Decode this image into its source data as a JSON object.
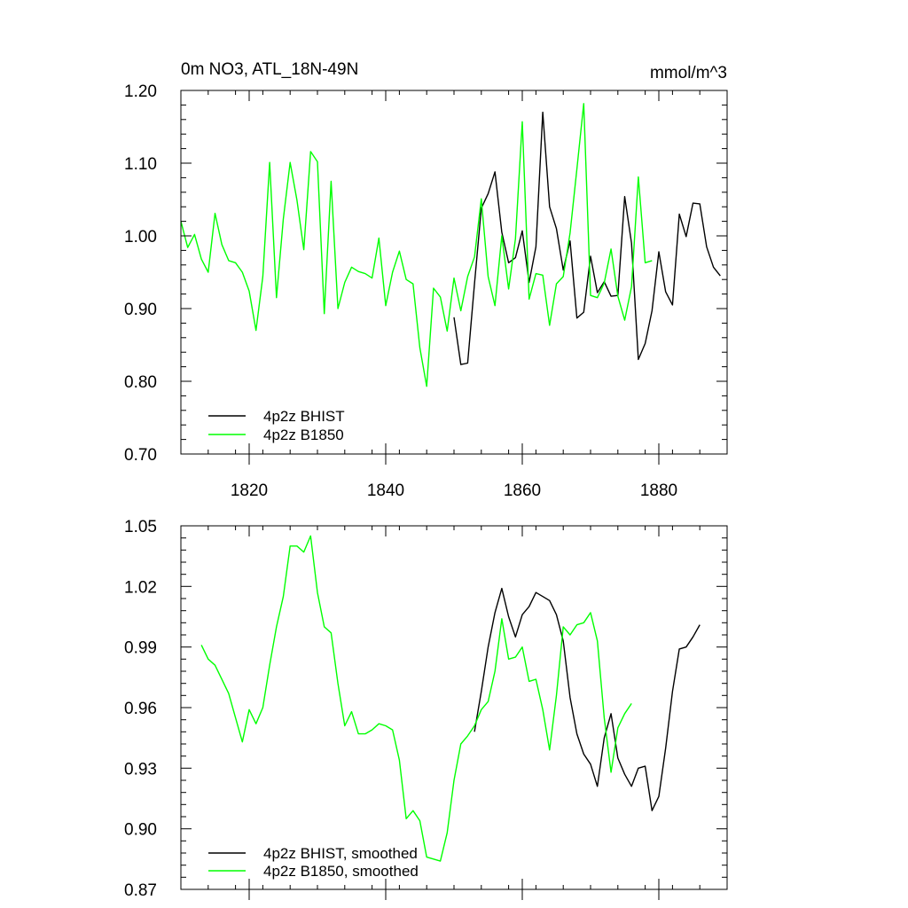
{
  "page": {
    "background": "#ffffff"
  },
  "colors": {
    "bhist": "#000000",
    "b1850": "#00ff00"
  },
  "chart_data": [
    {
      "type": "line",
      "title": "0m NO3, ATL_18N-49N",
      "subtitle": "mmol/m^3",
      "xlim": [
        1810,
        1890
      ],
      "ylim": [
        0.7,
        1.2
      ],
      "xticks": [
        1820,
        1840,
        1860,
        1880
      ],
      "xtick_labels": [
        "1820",
        "1840",
        "1860",
        "1880"
      ],
      "yticks": [
        0.7,
        0.8,
        0.9,
        1.0,
        1.1,
        1.2
      ],
      "ytick_labels": [
        "0.70",
        "0.80",
        "0.90",
        "1.00",
        "1.10",
        "1.20"
      ],
      "legend": "bottom-left",
      "series": [
        {
          "name": "4p2z BHIST",
          "color": "#000000",
          "x": [
            1850,
            1851,
            1852,
            1853,
            1854,
            1855,
            1856,
            1857,
            1858,
            1859,
            1860,
            1861,
            1862,
            1863,
            1864,
            1865,
            1866,
            1867,
            1868,
            1869,
            1870,
            1871,
            1872,
            1873,
            1874,
            1875,
            1876,
            1877,
            1878,
            1879,
            1880,
            1881,
            1882,
            1883,
            1884,
            1885,
            1886,
            1887,
            1888,
            1889
          ],
          "values": [
            0.888,
            0.823,
            0.825,
            0.934,
            1.038,
            1.058,
            1.088,
            1.005,
            0.963,
            0.97,
            1.007,
            0.936,
            0.985,
            1.17,
            1.04,
            1.01,
            0.953,
            0.993,
            0.887,
            0.895,
            0.972,
            0.922,
            0.937,
            0.917,
            0.918,
            1.054,
            0.99,
            0.83,
            0.852,
            0.897,
            0.978,
            0.923,
            0.905,
            1.03,
            0.999,
            1.045,
            1.044,
            0.985,
            0.957,
            0.945
          ]
        },
        {
          "name": "4p2z B1850",
          "color": "#00ff00",
          "x": [
            1810,
            1811,
            1812,
            1813,
            1814,
            1815,
            1816,
            1817,
            1818,
            1819,
            1820,
            1821,
            1822,
            1823,
            1824,
            1825,
            1826,
            1827,
            1828,
            1829,
            1830,
            1831,
            1832,
            1833,
            1834,
            1835,
            1836,
            1837,
            1838,
            1839,
            1840,
            1841,
            1842,
            1843,
            1844,
            1845,
            1846,
            1847,
            1848,
            1849,
            1850,
            1851,
            1852,
            1853,
            1854,
            1855,
            1856,
            1857,
            1858,
            1859,
            1860,
            1861,
            1862,
            1863,
            1864,
            1865,
            1866,
            1867,
            1868,
            1869,
            1870,
            1871,
            1872,
            1873,
            1874,
            1875,
            1876,
            1877,
            1878,
            1879
          ],
          "values": [
            1.02,
            0.984,
            1.002,
            0.968,
            0.95,
            1.031,
            0.988,
            0.966,
            0.963,
            0.95,
            0.924,
            0.87,
            0.944,
            1.101,
            0.915,
            1.023,
            1.101,
            1.049,
            0.981,
            1.116,
            1.102,
            0.893,
            1.075,
            0.9,
            0.936,
            0.957,
            0.951,
            0.948,
            0.942,
            0.997,
            0.904,
            0.95,
            0.979,
            0.94,
            0.934,
            0.846,
            0.793,
            0.928,
            0.916,
            0.869,
            0.942,
            0.897,
            0.944,
            0.971,
            1.051,
            0.944,
            0.904,
            1.0,
            0.927,
            0.996,
            1.157,
            0.913,
            0.948,
            0.946,
            0.877,
            0.934,
            0.944,
            1.004,
            1.092,
            1.182,
            0.918,
            0.915,
            0.935,
            0.982,
            0.917,
            0.884,
            0.93,
            1.081,
            0.963,
            0.966
          ]
        }
      ]
    },
    {
      "type": "line",
      "xlim": [
        1810,
        1890
      ],
      "ylim": [
        0.87,
        1.05
      ],
      "xticks": [
        1820,
        1840,
        1860,
        1880
      ],
      "yticks": [
        0.87,
        0.9,
        0.93,
        0.96,
        0.99,
        1.02,
        1.05
      ],
      "ytick_labels": [
        "0.87",
        "0.90",
        "0.93",
        "0.96",
        "0.99",
        "1.02",
        "1.05"
      ],
      "legend": "bottom-left",
      "series": [
        {
          "name": "4p2z BHIST, smoothed",
          "color": "#000000",
          "x": [
            1853,
            1854,
            1855,
            1856,
            1857,
            1858,
            1859,
            1860,
            1861,
            1862,
            1863,
            1864,
            1865,
            1866,
            1867,
            1868,
            1869,
            1870,
            1871,
            1872,
            1873,
            1874,
            1875,
            1876,
            1877,
            1878,
            1879,
            1880,
            1881,
            1882,
            1883,
            1884,
            1885,
            1886
          ],
          "values": [
            0.948,
            0.968,
            0.99,
            1.007,
            1.019,
            1.005,
            0.995,
            1.006,
            1.01,
            1.017,
            1.015,
            1.013,
            1.006,
            0.993,
            0.965,
            0.947,
            0.937,
            0.932,
            0.921,
            0.945,
            0.957,
            0.935,
            0.927,
            0.921,
            0.93,
            0.931,
            0.909,
            0.916,
            0.94,
            0.968,
            0.989,
            0.99,
            0.995,
            1.001
          ]
        },
        {
          "name": "4p2z B1850, smoothed",
          "color": "#00ff00",
          "x": [
            1813,
            1814,
            1815,
            1816,
            1817,
            1818,
            1819,
            1820,
            1821,
            1822,
            1823,
            1824,
            1825,
            1826,
            1827,
            1828,
            1829,
            1830,
            1831,
            1832,
            1833,
            1834,
            1835,
            1836,
            1837,
            1838,
            1839,
            1840,
            1841,
            1842,
            1843,
            1844,
            1845,
            1846,
            1847,
            1848,
            1849,
            1850,
            1851,
            1852,
            1853,
            1854,
            1855,
            1856,
            1857,
            1858,
            1859,
            1860,
            1861,
            1862,
            1863,
            1864,
            1865,
            1866,
            1867,
            1868,
            1869,
            1870,
            1871,
            1872,
            1873,
            1874,
            1875,
            1876
          ],
          "values": [
            0.991,
            0.984,
            0.981,
            0.974,
            0.967,
            0.955,
            0.943,
            0.959,
            0.952,
            0.96,
            0.981,
            1.0,
            1.015,
            1.04,
            1.04,
            1.037,
            1.045,
            1.017,
            1.0,
            0.997,
            0.972,
            0.951,
            0.958,
            0.947,
            0.947,
            0.949,
            0.952,
            0.951,
            0.949,
            0.934,
            0.905,
            0.909,
            0.904,
            0.886,
            0.885,
            0.884,
            0.898,
            0.924,
            0.942,
            0.946,
            0.951,
            0.959,
            0.963,
            0.978,
            1.004,
            0.984,
            0.985,
            0.99,
            0.973,
            0.974,
            0.959,
            0.939,
            0.966,
            1.0,
            0.996,
            1.001,
            1.002,
            1.007,
            0.993,
            0.955,
            0.928,
            0.95,
            0.957,
            0.962
          ]
        }
      ]
    }
  ]
}
